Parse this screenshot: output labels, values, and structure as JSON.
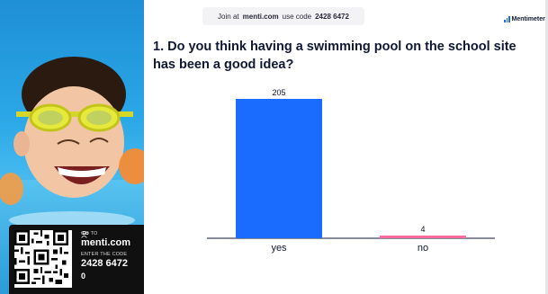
{
  "banner": {
    "join_at": "Join at",
    "url": "menti.com",
    "use_code": "use code",
    "code": "2428 6472"
  },
  "brand": {
    "name": "Mentimeter",
    "icon": "mentimeter-logo-icon",
    "color": "#196cff"
  },
  "question": {
    "text": "1. Do you think having a swimming pool on the school site has been a good idea?"
  },
  "join_card": {
    "go_to": "GO TO",
    "url": "menti.com",
    "enter_code": "ENTER THE CODE",
    "code": "2428 6472",
    "participants": "0",
    "participants_icon": "participants-icon"
  },
  "chart_data": {
    "type": "bar",
    "title": "",
    "categories": [
      "yes",
      "no"
    ],
    "values": [
      205,
      4
    ],
    "colors": [
      "#196cff",
      "#ff6b9a"
    ],
    "xlabel": "",
    "ylabel": "",
    "ylim": [
      0,
      205
    ],
    "grid": false
  }
}
